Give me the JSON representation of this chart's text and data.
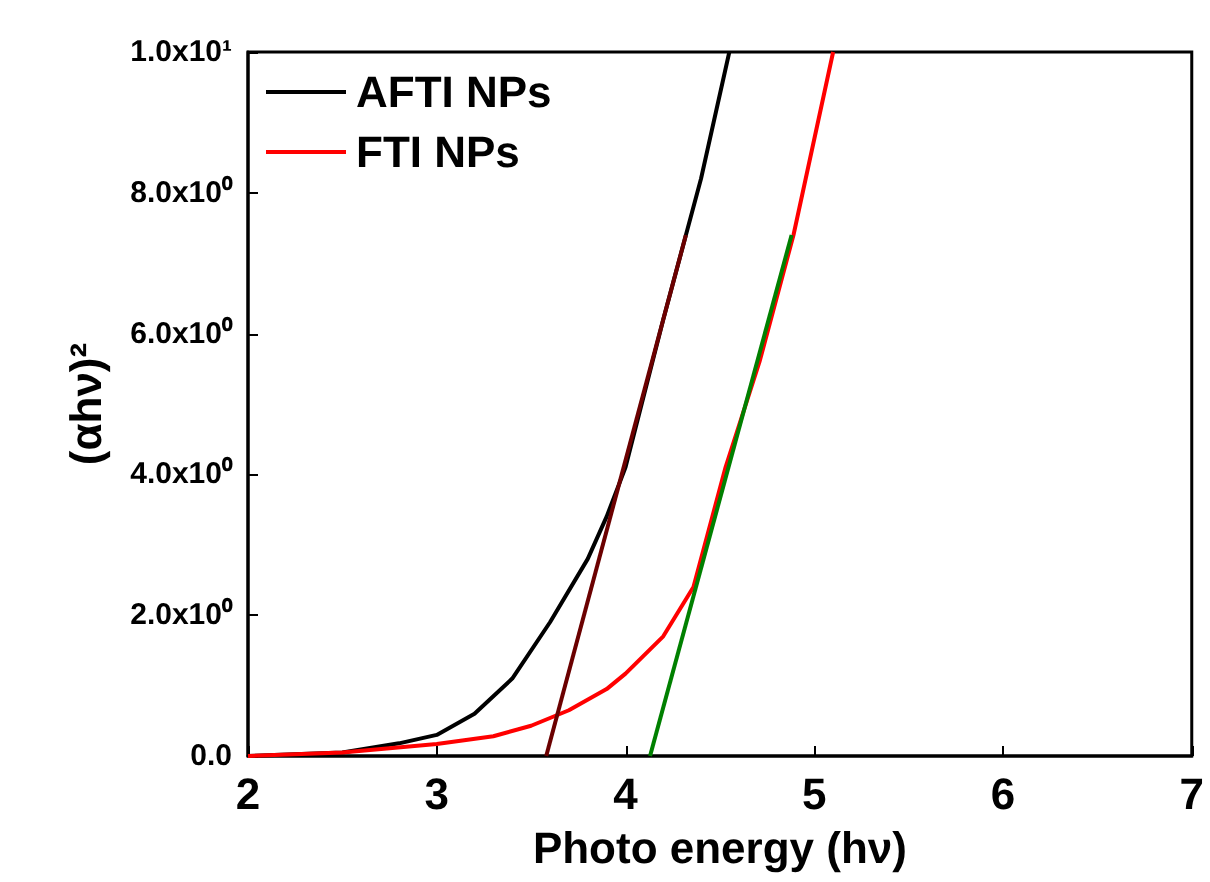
{
  "chart_data": {
    "type": "line",
    "xlabel": "Photo energy (hν)",
    "ylabel": "(αhν)²",
    "xlim": [
      2,
      7
    ],
    "xticks": [
      2,
      3,
      4,
      5,
      6,
      7
    ],
    "ylim": [
      0,
      10
    ],
    "yticks": [
      {
        "value": 0,
        "label": "0.0"
      },
      {
        "value": 2,
        "label": "2.0x10⁰"
      },
      {
        "value": 4,
        "label": "4.0x10⁰"
      },
      {
        "value": 6,
        "label": "6.0x10⁰"
      },
      {
        "value": 8,
        "label": "8.0x10⁰"
      },
      {
        "value": 10,
        "label": "1.0x10¹"
      }
    ],
    "series": [
      {
        "name": "AFTI NPs",
        "color": "#000000",
        "x": [
          2,
          2.5,
          2.8,
          3,
          3.2,
          3.4,
          3.6,
          3.8,
          3.9,
          4,
          4.2,
          4.4,
          4.55
        ],
        "values": [
          0,
          0.05,
          0.18,
          0.3,
          0.6,
          1.1,
          1.9,
          2.8,
          3.4,
          4.1,
          6.2,
          8.2,
          10
        ]
      },
      {
        "name": "FTI NPs",
        "color": "#ff0000",
        "x": [
          2,
          2.5,
          3,
          3.3,
          3.5,
          3.7,
          3.9,
          4,
          4.2,
          4.36,
          4.53,
          4.71,
          4.89,
          5.1
        ],
        "values": [
          0,
          0.05,
          0.17,
          0.28,
          0.43,
          0.65,
          0.95,
          1.17,
          1.7,
          2.4,
          4.1,
          5.6,
          7.4,
          10
        ]
      },
      {
        "color": "#6b0000",
        "x": [
          3.58,
          4.32
        ],
        "values": [
          0,
          7.4
        ]
      },
      {
        "color": "#008000",
        "x": [
          4.13,
          4.88
        ],
        "values": [
          0,
          7.4
        ]
      }
    ],
    "legend": "top left",
    "grid": false,
    "marker": "none",
    "line_style": "solid"
  }
}
